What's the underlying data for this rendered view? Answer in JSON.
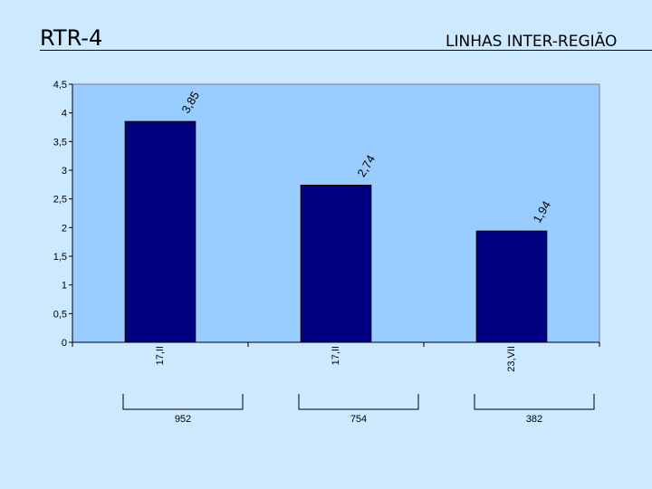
{
  "header": {
    "title": "RTR-4",
    "subtitle": "LINHAS INTER-REGIÃO"
  },
  "colors": {
    "background": "#cce9ff",
    "plot_area": "#99ccff",
    "bar": "#000080"
  },
  "chart_data": {
    "type": "bar",
    "categories": [
      "17,II",
      "17,II",
      "23,VII"
    ],
    "values": [
      3.85,
      2.74,
      1.94
    ],
    "data_labels": [
      "3,85",
      "2,74",
      "1,94"
    ],
    "groups": [
      "952",
      "754",
      "382"
    ],
    "ylim": [
      0,
      4.5
    ],
    "yticks": [
      "0",
      "0,5",
      "1",
      "1,5",
      "2",
      "2,5",
      "3",
      "3,5",
      "4",
      "4,5"
    ],
    "grid": false,
    "legend": "none"
  }
}
